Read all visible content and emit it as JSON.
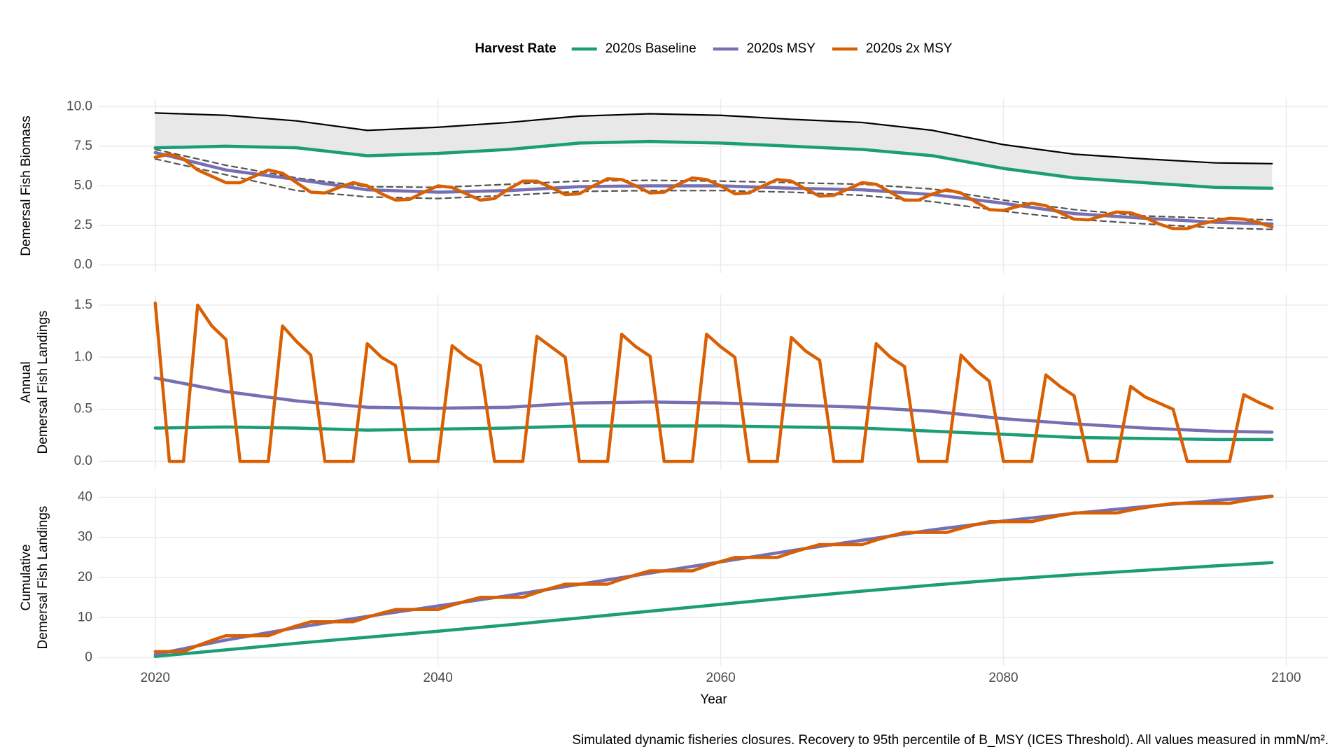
{
  "chart_data": [
    {
      "type": "line",
      "ylabel": [
        "Demersal Fish Biomass"
      ],
      "legend_title": "Harvest Rate",
      "legend_position": "top",
      "x": [
        2020,
        2025,
        2030,
        2035,
        2040,
        2045,
        2050,
        2055,
        2060,
        2065,
        2070,
        2075,
        2080,
        2085,
        2090,
        2095,
        2099
      ],
      "xlim": [
        2016,
        2103
      ],
      "xticks": [
        2020,
        2040,
        2060,
        2080,
        2100
      ],
      "x_tick_labels": false,
      "ylim": [
        -0.5,
        10.5
      ],
      "yticks": [
        {
          "value": 0,
          "label": "0.0"
        },
        2.5,
        {
          "value": 5,
          "label": "5.0"
        },
        7.5,
        {
          "value": 10,
          "label": "10.0"
        }
      ],
      "grid": true,
      "envelope": {
        "color": "#000000",
        "fill": "#e8e8e8",
        "values": [
          9.6,
          9.45,
          9.1,
          8.5,
          8.7,
          9.0,
          9.4,
          9.55,
          9.45,
          9.2,
          9.0,
          8.5,
          7.6,
          7.0,
          6.7,
          6.45,
          6.4
        ]
      },
      "dashed_bounds": {
        "color": "#555555",
        "upper": [
          7.3,
          6.3,
          5.5,
          4.95,
          4.9,
          5.1,
          5.3,
          5.35,
          5.3,
          5.2,
          5.1,
          4.8,
          4.1,
          3.5,
          3.1,
          2.95,
          2.85
        ],
        "lower": [
          6.7,
          5.7,
          4.7,
          4.3,
          4.2,
          4.4,
          4.65,
          4.7,
          4.7,
          4.6,
          4.4,
          4.0,
          3.4,
          2.9,
          2.6,
          2.35,
          2.25
        ]
      },
      "series": [
        {
          "name": "2020s Baseline",
          "color": "#1b9e77",
          "values": [
            7.4,
            7.5,
            7.4,
            6.9,
            7.05,
            7.3,
            7.7,
            7.8,
            7.7,
            7.5,
            7.3,
            6.9,
            6.1,
            5.5,
            5.2,
            4.9,
            4.85
          ]
        },
        {
          "name": "2020s MSY",
          "color": "#7570b3",
          "values": [
            7.1,
            6.0,
            5.4,
            4.75,
            4.6,
            4.7,
            4.95,
            5.0,
            5.0,
            4.85,
            4.75,
            4.45,
            3.9,
            3.25,
            2.95,
            2.7,
            2.6
          ]
        },
        {
          "name": "2020s 2x MSY",
          "color": "#d95f02",
          "x": [
            2020,
            2021,
            2022,
            2023,
            2024,
            2025,
            2026,
            2027,
            2028,
            2029,
            2030,
            2031,
            2032,
            2033,
            2034,
            2035,
            2036,
            2037,
            2038,
            2039,
            2040,
            2041,
            2042,
            2043,
            2044,
            2045,
            2046,
            2047,
            2048,
            2049,
            2050,
            2051,
            2052,
            2053,
            2054,
            2055,
            2056,
            2057,
            2058,
            2059,
            2060,
            2061,
            2062,
            2063,
            2064,
            2065,
            2066,
            2067,
            2068,
            2069,
            2070,
            2071,
            2072,
            2073,
            2074,
            2075,
            2076,
            2077,
            2078,
            2079,
            2080,
            2081,
            2082,
            2083,
            2084,
            2085,
            2086,
            2087,
            2088,
            2089,
            2090,
            2091,
            2092,
            2093,
            2094,
            2095,
            2096,
            2097,
            2098,
            2099
          ],
          "values": [
            6.8,
            7.0,
            6.7,
            6.0,
            5.6,
            5.2,
            5.2,
            5.6,
            6.0,
            5.8,
            5.2,
            4.6,
            4.55,
            4.9,
            5.2,
            5.0,
            4.5,
            4.1,
            4.15,
            4.6,
            5.0,
            4.9,
            4.5,
            4.1,
            4.2,
            4.8,
            5.3,
            5.3,
            4.9,
            4.45,
            4.5,
            5.0,
            5.45,
            5.4,
            5.0,
            4.55,
            4.6,
            5.1,
            5.5,
            5.4,
            5.0,
            4.5,
            4.55,
            5.0,
            5.4,
            5.3,
            4.8,
            4.35,
            4.4,
            4.8,
            5.2,
            5.1,
            4.6,
            4.1,
            4.1,
            4.5,
            4.75,
            4.55,
            4.0,
            3.5,
            3.45,
            3.7,
            3.9,
            3.75,
            3.3,
            2.9,
            2.85,
            3.1,
            3.35,
            3.3,
            3.0,
            2.6,
            2.3,
            2.3,
            2.6,
            2.8,
            2.95,
            2.9,
            2.7,
            2.4
          ]
        }
      ]
    },
    {
      "type": "line",
      "ylabel": [
        "Annual",
        "Demersal Fish Landings"
      ],
      "x": [
        2020,
        2025,
        2030,
        2035,
        2040,
        2045,
        2050,
        2055,
        2060,
        2065,
        2070,
        2075,
        2080,
        2085,
        2090,
        2095,
        2099
      ],
      "xlim": [
        2016,
        2103
      ],
      "xticks": [
        2020,
        2040,
        2060,
        2080,
        2100
      ],
      "x_tick_labels": false,
      "ylim": [
        -0.08,
        1.6
      ],
      "yticks": [
        {
          "value": 0,
          "label": "0.0"
        },
        0.5,
        {
          "value": 1,
          "label": "1.0"
        },
        1.5
      ],
      "grid": true,
      "series": [
        {
          "name": "2020s Baseline",
          "color": "#1b9e77",
          "values": [
            0.32,
            0.33,
            0.32,
            0.3,
            0.31,
            0.32,
            0.34,
            0.34,
            0.34,
            0.33,
            0.32,
            0.29,
            0.26,
            0.23,
            0.22,
            0.21,
            0.21
          ]
        },
        {
          "name": "2020s MSY",
          "color": "#7570b3",
          "values": [
            0.8,
            0.67,
            0.58,
            0.52,
            0.51,
            0.52,
            0.56,
            0.57,
            0.56,
            0.54,
            0.52,
            0.48,
            0.41,
            0.36,
            0.32,
            0.29,
            0.28
          ]
        },
        {
          "name": "2020s 2x MSY",
          "color": "#d95f02",
          "x": [
            2020,
            2021,
            2022,
            2023,
            2024,
            2025,
            2026,
            2027,
            2028,
            2029,
            2030,
            2031,
            2032,
            2033,
            2034,
            2035,
            2036,
            2037,
            2038,
            2039,
            2040,
            2041,
            2042,
            2043,
            2044,
            2045,
            2046,
            2047,
            2048,
            2049,
            2050,
            2051,
            2052,
            2053,
            2054,
            2055,
            2056,
            2057,
            2058,
            2059,
            2060,
            2061,
            2062,
            2063,
            2064,
            2065,
            2066,
            2067,
            2068,
            2069,
            2070,
            2071,
            2072,
            2073,
            2074,
            2075,
            2076,
            2077,
            2078,
            2079,
            2080,
            2081,
            2082,
            2083,
            2084,
            2085,
            2086,
            2087,
            2088,
            2089,
            2090,
            2091,
            2092,
            2093,
            2094,
            2095,
            2096,
            2097,
            2098,
            2099
          ],
          "values": [
            1.52,
            0,
            0,
            1.5,
            1.3,
            1.17,
            0,
            0,
            0,
            1.3,
            1.15,
            1.02,
            0,
            0,
            0,
            1.13,
            1.0,
            0.92,
            0,
            0,
            0,
            1.11,
            1.0,
            0.92,
            0,
            0,
            0,
            1.2,
            1.1,
            1.0,
            0,
            0,
            0,
            1.22,
            1.1,
            1.01,
            0,
            0,
            0,
            1.22,
            1.1,
            1.0,
            0,
            0,
            0,
            1.19,
            1.06,
            0.97,
            0,
            0,
            0,
            1.13,
            1.0,
            0.91,
            0,
            0,
            0,
            1.02,
            0.88,
            0.77,
            0,
            0,
            0,
            0.83,
            0.72,
            0.63,
            0,
            0,
            0,
            0.72,
            0.62,
            0.56,
            0.5,
            0,
            0,
            0,
            0,
            0.64,
            0.57,
            0.51
          ]
        }
      ]
    },
    {
      "type": "line",
      "ylabel": [
        "Cumulative",
        "Demersal Fish Landings"
      ],
      "xlabel": "Year",
      "caption": "Simulated dynamic fisheries closures. Recovery to 95th percentile of B_MSY (ICES Threshold). All values measured in mmN/m².",
      "x": [
        2020,
        2025,
        2030,
        2035,
        2040,
        2045,
        2050,
        2055,
        2060,
        2065,
        2070,
        2075,
        2080,
        2085,
        2090,
        2095,
        2099
      ],
      "xlim": [
        2016,
        2103
      ],
      "xticks": [
        2020,
        2040,
        2060,
        2080,
        2100
      ],
      "x_tick_labels": true,
      "ylim": [
        -2,
        42
      ],
      "yticks": [
        0,
        10,
        20,
        30,
        40
      ],
      "grid": true,
      "series": [
        {
          "name": "2020s Baseline",
          "color": "#1b9e77",
          "values": [
            0.32,
            1.95,
            3.6,
            5.1,
            6.6,
            8.2,
            9.9,
            11.6,
            13.3,
            15.0,
            16.6,
            18.1,
            19.5,
            20.7,
            21.8,
            22.9,
            23.7
          ]
        },
        {
          "name": "2020s MSY",
          "color": "#7570b3",
          "values": [
            0.8,
            4.4,
            7.5,
            10.3,
            12.9,
            15.5,
            18.3,
            21.1,
            23.9,
            26.7,
            29.3,
            31.9,
            34.1,
            36.0,
            37.7,
            39.2,
            40.3
          ]
        },
        {
          "name": "2020s 2x MSY",
          "color": "#d95f02",
          "x": [
            2020,
            2021,
            2022,
            2023,
            2024,
            2025,
            2026,
            2027,
            2028,
            2029,
            2030,
            2031,
            2032,
            2033,
            2034,
            2035,
            2036,
            2037,
            2038,
            2039,
            2040,
            2041,
            2042,
            2043,
            2044,
            2045,
            2046,
            2047,
            2048,
            2049,
            2050,
            2051,
            2052,
            2053,
            2054,
            2055,
            2056,
            2057,
            2058,
            2059,
            2060,
            2061,
            2062,
            2063,
            2064,
            2065,
            2066,
            2067,
            2068,
            2069,
            2070,
            2071,
            2072,
            2073,
            2074,
            2075,
            2076,
            2077,
            2078,
            2079,
            2080,
            2081,
            2082,
            2083,
            2084,
            2085,
            2086,
            2087,
            2088,
            2089,
            2090,
            2091,
            2092,
            2093,
            2094,
            2095,
            2096,
            2097,
            2098,
            2099
          ],
          "values": [
            1.52,
            1.52,
            1.52,
            3.02,
            4.32,
            5.49,
            5.49,
            5.49,
            5.49,
            6.79,
            7.94,
            8.96,
            8.96,
            8.96,
            8.96,
            10.09,
            11.09,
            12.01,
            12.01,
            12.01,
            12.01,
            13.12,
            14.12,
            15.04,
            15.04,
            15.04,
            15.04,
            16.24,
            17.34,
            18.34,
            18.34,
            18.34,
            18.34,
            19.56,
            20.66,
            21.67,
            21.67,
            21.67,
            21.67,
            22.89,
            23.99,
            24.99,
            24.99,
            24.99,
            24.99,
            26.18,
            27.24,
            28.21,
            28.21,
            28.21,
            28.21,
            29.34,
            30.34,
            31.25,
            31.25,
            31.25,
            31.25,
            32.27,
            33.15,
            33.92,
            33.92,
            33.92,
            33.92,
            34.75,
            35.47,
            36.1,
            36.1,
            36.1,
            36.1,
            36.82,
            37.44,
            38.0,
            38.5,
            38.5,
            38.5,
            38.5,
            38.5,
            39.14,
            39.71,
            40.22
          ]
        }
      ]
    }
  ]
}
